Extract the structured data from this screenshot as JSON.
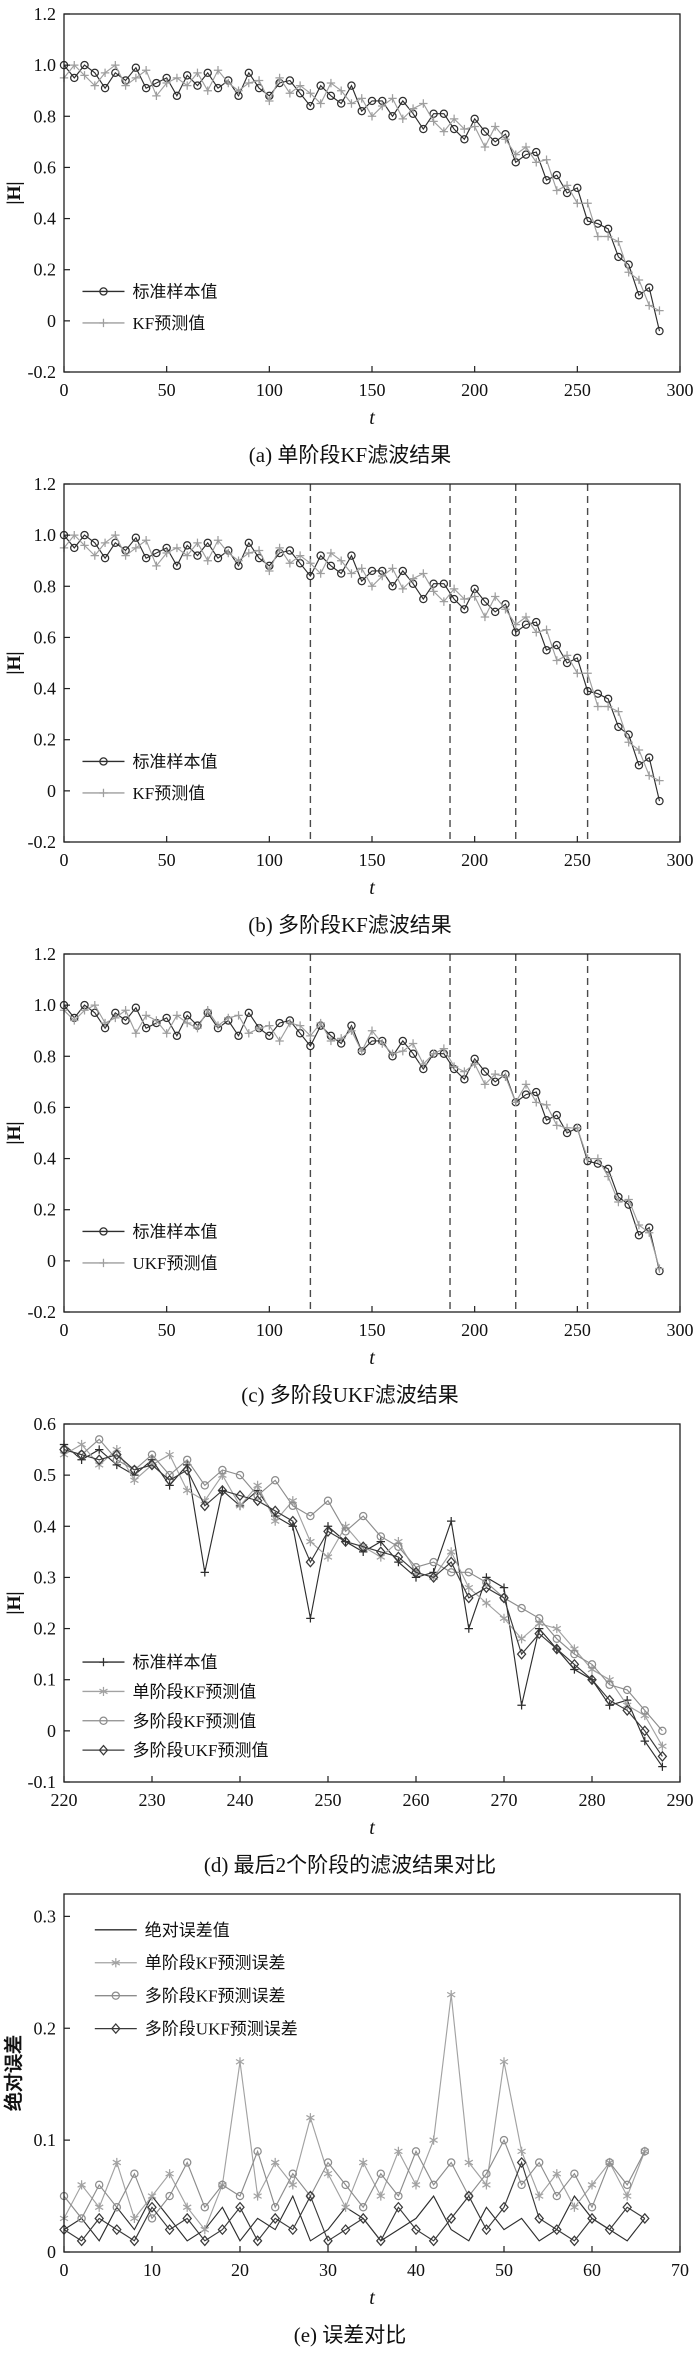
{
  "colors": {
    "axis": "#1f1f1f",
    "dark_series": "#2e2e2e",
    "gray_series": "#9e9e9e",
    "stage_line": "#4a4a4a",
    "text": "#111111"
  },
  "chart_data": [
    {
      "type": "line",
      "caption": "(a) 单阶段KF滤波结果",
      "xlabel": "t",
      "ylabel": "|H|",
      "xlim": [
        0,
        300
      ],
      "ylim": [
        -0.2,
        1.2
      ],
      "xticks": [
        0,
        50,
        100,
        150,
        200,
        250,
        300
      ],
      "yticks": [
        -0.2,
        0,
        0.2,
        0.4,
        0.6,
        0.8,
        1.0,
        1.2
      ],
      "legend_pos": {
        "x": 0.03,
        "y": 0.775,
        "row": 0.088
      },
      "x_start": 0,
      "x_step": 5,
      "series": [
        {
          "name": "标准样本值",
          "marker": "circle",
          "color": "#2e2e2e",
          "values": [
            1.0,
            0.95,
            1.0,
            0.97,
            0.91,
            0.97,
            0.94,
            0.99,
            0.91,
            0.93,
            0.95,
            0.88,
            0.96,
            0.92,
            0.97,
            0.91,
            0.94,
            0.88,
            0.97,
            0.91,
            0.88,
            0.93,
            0.94,
            0.89,
            0.84,
            0.92,
            0.88,
            0.85,
            0.92,
            0.82,
            0.86,
            0.86,
            0.8,
            0.86,
            0.81,
            0.75,
            0.81,
            0.81,
            0.75,
            0.71,
            0.79,
            0.74,
            0.7,
            0.73,
            0.62,
            0.65,
            0.66,
            0.55,
            0.57,
            0.5,
            0.52,
            0.39,
            0.38,
            0.36,
            0.25,
            0.22,
            0.1,
            0.13,
            -0.04
          ]
        },
        {
          "name": "KF预测值",
          "marker": "plus",
          "color": "#9e9e9e",
          "values": [
            0.95,
            1.0,
            0.96,
            0.92,
            0.97,
            1.0,
            0.92,
            0.95,
            0.98,
            0.88,
            0.93,
            0.95,
            0.92,
            0.97,
            0.9,
            0.98,
            0.93,
            0.9,
            0.93,
            0.94,
            0.86,
            0.95,
            0.89,
            0.92,
            0.89,
            0.85,
            0.93,
            0.9,
            0.85,
            0.87,
            0.8,
            0.84,
            0.87,
            0.79,
            0.83,
            0.85,
            0.78,
            0.74,
            0.79,
            0.75,
            0.76,
            0.68,
            0.76,
            0.71,
            0.65,
            0.68,
            0.62,
            0.63,
            0.51,
            0.53,
            0.46,
            0.46,
            0.33,
            0.33,
            0.31,
            0.19,
            0.16,
            0.06,
            0.04
          ]
        }
      ]
    },
    {
      "type": "line",
      "caption": "(b) 多阶段KF滤波结果",
      "xlabel": "t",
      "ylabel": "|H|",
      "xlim": [
        0,
        300
      ],
      "ylim": [
        -0.2,
        1.2
      ],
      "xticks": [
        0,
        50,
        100,
        150,
        200,
        250,
        300
      ],
      "yticks": [
        -0.2,
        0,
        0.2,
        0.4,
        0.6,
        0.8,
        1.0,
        1.2
      ],
      "stage_lines": [
        120,
        188,
        220,
        255
      ],
      "legend_pos": {
        "x": 0.03,
        "y": 0.775,
        "row": 0.088
      },
      "x_start": 0,
      "x_step": 5,
      "series": [
        {
          "name": "标准样本值",
          "marker": "circle",
          "color": "#2e2e2e",
          "values": [
            1.0,
            0.95,
            1.0,
            0.97,
            0.91,
            0.97,
            0.94,
            0.99,
            0.91,
            0.93,
            0.95,
            0.88,
            0.96,
            0.92,
            0.97,
            0.91,
            0.94,
            0.88,
            0.97,
            0.91,
            0.88,
            0.93,
            0.94,
            0.89,
            0.84,
            0.92,
            0.88,
            0.85,
            0.92,
            0.82,
            0.86,
            0.86,
            0.8,
            0.86,
            0.81,
            0.75,
            0.81,
            0.81,
            0.75,
            0.71,
            0.79,
            0.74,
            0.7,
            0.73,
            0.62,
            0.65,
            0.66,
            0.55,
            0.57,
            0.5,
            0.52,
            0.39,
            0.38,
            0.36,
            0.25,
            0.22,
            0.1,
            0.13,
            -0.04
          ]
        },
        {
          "name": "KF预测值",
          "marker": "plus",
          "color": "#9e9e9e",
          "values": [
            0.95,
            1.0,
            0.96,
            0.92,
            0.97,
            1.0,
            0.92,
            0.95,
            0.98,
            0.88,
            0.93,
            0.95,
            0.92,
            0.97,
            0.9,
            0.98,
            0.93,
            0.9,
            0.93,
            0.94,
            0.86,
            0.95,
            0.89,
            0.92,
            0.89,
            0.85,
            0.93,
            0.9,
            0.85,
            0.87,
            0.8,
            0.84,
            0.87,
            0.79,
            0.83,
            0.85,
            0.78,
            0.74,
            0.79,
            0.75,
            0.76,
            0.68,
            0.76,
            0.71,
            0.65,
            0.68,
            0.62,
            0.63,
            0.51,
            0.53,
            0.46,
            0.46,
            0.33,
            0.33,
            0.31,
            0.19,
            0.16,
            0.06,
            0.04
          ]
        }
      ]
    },
    {
      "type": "line",
      "caption": "(c) 多阶段UKF滤波结果",
      "xlabel": "t",
      "ylabel": "|H|",
      "xlim": [
        0,
        300
      ],
      "ylim": [
        -0.2,
        1.2
      ],
      "xticks": [
        0,
        50,
        100,
        150,
        200,
        250,
        300
      ],
      "yticks": [
        -0.2,
        0,
        0.2,
        0.4,
        0.6,
        0.8,
        1.0,
        1.2
      ],
      "stage_lines": [
        120,
        188,
        220,
        255
      ],
      "legend_pos": {
        "x": 0.03,
        "y": 0.775,
        "row": 0.088
      },
      "x_start": 0,
      "x_step": 5,
      "series": [
        {
          "name": "标准样本值",
          "marker": "circle",
          "color": "#2e2e2e",
          "values": [
            1.0,
            0.95,
            1.0,
            0.97,
            0.91,
            0.97,
            0.94,
            0.99,
            0.91,
            0.93,
            0.95,
            0.88,
            0.96,
            0.92,
            0.97,
            0.91,
            0.94,
            0.88,
            0.97,
            0.91,
            0.88,
            0.93,
            0.94,
            0.89,
            0.84,
            0.92,
            0.88,
            0.85,
            0.92,
            0.82,
            0.86,
            0.86,
            0.8,
            0.86,
            0.81,
            0.75,
            0.81,
            0.81,
            0.75,
            0.71,
            0.79,
            0.74,
            0.7,
            0.73,
            0.62,
            0.65,
            0.66,
            0.55,
            0.57,
            0.5,
            0.52,
            0.39,
            0.38,
            0.36,
            0.25,
            0.22,
            0.1,
            0.13,
            -0.04
          ]
        },
        {
          "name": "UKF预测值",
          "marker": "plus",
          "color": "#9e9e9e",
          "values": [
            0.98,
            0.94,
            0.98,
            1.0,
            0.93,
            0.95,
            0.98,
            0.89,
            0.96,
            0.94,
            0.89,
            0.96,
            0.93,
            0.91,
            0.98,
            0.92,
            0.95,
            0.96,
            0.89,
            0.91,
            0.92,
            0.86,
            0.93,
            0.92,
            0.88,
            0.93,
            0.86,
            0.87,
            0.9,
            0.82,
            0.9,
            0.85,
            0.81,
            0.82,
            0.85,
            0.77,
            0.81,
            0.83,
            0.76,
            0.74,
            0.77,
            0.69,
            0.73,
            0.72,
            0.62,
            0.69,
            0.62,
            0.61,
            0.53,
            0.52,
            0.52,
            0.4,
            0.4,
            0.33,
            0.23,
            0.24,
            0.14,
            0.11,
            -0.03
          ]
        }
      ]
    },
    {
      "type": "line",
      "caption": "(d) 最后2个阶段的滤波结果对比",
      "xlabel": "t",
      "ylabel": "|H|",
      "xlim": [
        220,
        290
      ],
      "ylim": [
        -0.1,
        0.6
      ],
      "xticks": [
        220,
        230,
        240,
        250,
        260,
        270,
        280,
        290
      ],
      "yticks": [
        -0.1,
        0,
        0.1,
        0.2,
        0.3,
        0.4,
        0.5,
        0.6
      ],
      "legend_pos": {
        "x": 0.03,
        "y": 0.665,
        "row": 0.082
      },
      "x_start": 220,
      "x_step": 2,
      "series": [
        {
          "name": "标准样本值",
          "marker": "plus",
          "color": "#2e2e2e",
          "values": [
            0.56,
            0.53,
            0.55,
            0.52,
            0.5,
            0.53,
            0.48,
            0.52,
            0.31,
            0.47,
            0.44,
            0.47,
            0.42,
            0.4,
            0.22,
            0.4,
            0.37,
            0.35,
            0.37,
            0.33,
            0.3,
            0.31,
            0.41,
            0.2,
            0.3,
            0.28,
            0.05,
            0.2,
            0.16,
            0.12,
            0.1,
            0.05,
            0.06,
            -0.02,
            -0.07
          ]
        },
        {
          "name": "单阶段KF预测值",
          "marker": "asterisk",
          "color": "#a2a2a2",
          "values": [
            0.54,
            0.56,
            0.52,
            0.55,
            0.49,
            0.52,
            0.54,
            0.47,
            0.45,
            0.5,
            0.44,
            0.48,
            0.41,
            0.45,
            0.37,
            0.34,
            0.4,
            0.36,
            0.34,
            0.37,
            0.31,
            0.3,
            0.35,
            0.28,
            0.25,
            0.22,
            0.18,
            0.21,
            0.2,
            0.16,
            0.12,
            0.1,
            0.05,
            0.03,
            -0.03
          ]
        },
        {
          "name": "多阶段KF预测值",
          "marker": "circle",
          "color": "#8c8c8c",
          "values": [
            0.55,
            0.54,
            0.57,
            0.53,
            0.51,
            0.54,
            0.5,
            0.53,
            0.48,
            0.51,
            0.5,
            0.46,
            0.49,
            0.44,
            0.42,
            0.45,
            0.39,
            0.42,
            0.38,
            0.36,
            0.32,
            0.33,
            0.31,
            0.31,
            0.29,
            0.26,
            0.24,
            0.22,
            0.18,
            0.15,
            0.13,
            0.09,
            0.08,
            0.04,
            0.0
          ]
        },
        {
          "name": "多阶段UKF预测值",
          "marker": "diamond",
          "color": "#3a3a3a",
          "values": [
            0.55,
            0.54,
            0.53,
            0.54,
            0.51,
            0.52,
            0.49,
            0.51,
            0.44,
            0.47,
            0.46,
            0.45,
            0.43,
            0.41,
            0.33,
            0.39,
            0.37,
            0.36,
            0.35,
            0.34,
            0.31,
            0.3,
            0.33,
            0.26,
            0.28,
            0.26,
            0.15,
            0.19,
            0.16,
            0.13,
            0.1,
            0.06,
            0.04,
            0.0,
            -0.05
          ]
        }
      ]
    },
    {
      "type": "line",
      "caption": "(e) 误差对比",
      "xlabel": "t",
      "ylabel": "绝对误差",
      "xlim": [
        0,
        70
      ],
      "ylim": [
        0,
        0.32
      ],
      "xticks": [
        0,
        10,
        20,
        30,
        40,
        50,
        60,
        70
      ],
      "yticks": [
        0,
        0.1,
        0.2,
        0.3
      ],
      "legend_pos": {
        "x": 0.05,
        "y": 0.1,
        "row": 0.092
      },
      "x_start": 0,
      "x_step": 2,
      "series": [
        {
          "name": "绝对误差值",
          "marker": "none",
          "color": "#2e2e2e",
          "values": [
            0.02,
            0.03,
            0.01,
            0.04,
            0.02,
            0.05,
            0.03,
            0.01,
            0.02,
            0.04,
            0.01,
            0.03,
            0.02,
            0.05,
            0.01,
            0.02,
            0.04,
            0.03,
            0.01,
            0.02,
            0.03,
            0.05,
            0.02,
            0.01,
            0.04,
            0.02,
            0.03,
            0.01,
            0.02,
            0.05,
            0.03,
            0.02,
            0.01,
            0.03
          ]
        },
        {
          "name": "单阶段KF预测误差",
          "marker": "asterisk",
          "color": "#a2a2a2",
          "values": [
            0.03,
            0.06,
            0.04,
            0.08,
            0.03,
            0.05,
            0.07,
            0.04,
            0.02,
            0.06,
            0.17,
            0.05,
            0.08,
            0.06,
            0.12,
            0.07,
            0.04,
            0.08,
            0.05,
            0.09,
            0.06,
            0.1,
            0.23,
            0.08,
            0.06,
            0.17,
            0.09,
            0.05,
            0.07,
            0.04,
            0.06,
            0.08,
            0.05,
            0.09
          ]
        },
        {
          "name": "多阶段KF预测误差",
          "marker": "circle",
          "color": "#8c8c8c",
          "values": [
            0.05,
            0.03,
            0.06,
            0.04,
            0.07,
            0.03,
            0.05,
            0.08,
            0.04,
            0.06,
            0.05,
            0.09,
            0.04,
            0.07,
            0.05,
            0.08,
            0.06,
            0.04,
            0.07,
            0.05,
            0.09,
            0.06,
            0.08,
            0.05,
            0.07,
            0.1,
            0.06,
            0.08,
            0.05,
            0.07,
            0.04,
            0.08,
            0.06,
            0.09
          ]
        },
        {
          "name": "多阶段UKF预测误差",
          "marker": "diamond",
          "color": "#3a3a3a",
          "values": [
            0.02,
            0.01,
            0.03,
            0.02,
            0.01,
            0.04,
            0.02,
            0.03,
            0.01,
            0.02,
            0.04,
            0.01,
            0.03,
            0.02,
            0.05,
            0.01,
            0.02,
            0.03,
            0.01,
            0.04,
            0.02,
            0.01,
            0.03,
            0.05,
            0.02,
            0.04,
            0.08,
            0.03,
            0.02,
            0.01,
            0.03,
            0.02,
            0.04,
            0.03
          ]
        }
      ]
    }
  ]
}
